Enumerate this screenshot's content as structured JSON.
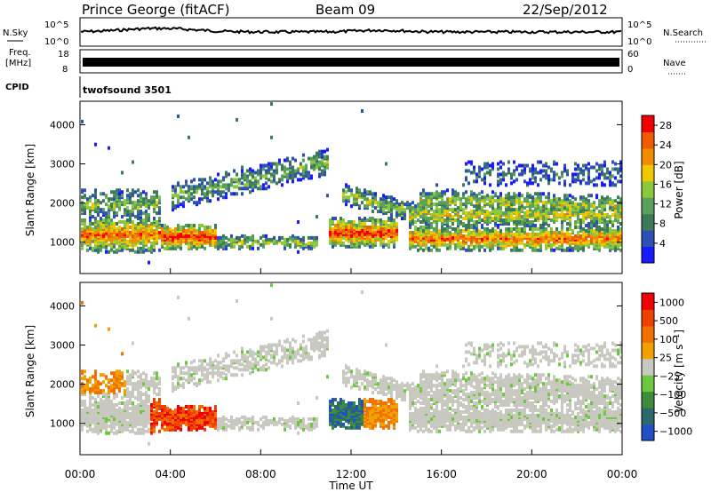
{
  "header": {
    "station": "Prince George (fitACF)",
    "beam": "Beam 09",
    "date": "22/Sep/2012"
  },
  "noise_panel": {
    "left_label": "N.Sky",
    "right_label": "N.Search",
    "left_ticks": [
      "10^5",
      "10^0"
    ],
    "right_ticks": [
      "10^5",
      "10^0"
    ]
  },
  "freq_panel": {
    "left_label_line1": "Freq.",
    "left_label_line2": "[MHz]",
    "right_label": "Nave",
    "left_ticks": [
      "18",
      "8"
    ],
    "right_ticks": [
      "60",
      "0"
    ]
  },
  "cpid_panel": {
    "label": "CPID",
    "value": "twofsound 3501"
  },
  "colors": {
    "power": [
      "#1a1aff",
      "#2e4fb4",
      "#3d7a5a",
      "#5aa05a",
      "#8cc83c",
      "#f0c800",
      "#f08c00",
      "#f05a00",
      "#f00000"
    ],
    "velocity": [
      "#2050c8",
      "#2a6a6a",
      "#3c8c3c",
      "#6cc83c",
      "#c8c8c0",
      "#f0a000",
      "#f07000",
      "#f04000",
      "#f00000"
    ]
  },
  "chart_data": [
    {
      "type": "heatmap",
      "title": "Power",
      "ylabel": "Slant Range [km]",
      "xlabel": "",
      "y_ticks": [
        1000,
        2000,
        3000,
        4000
      ],
      "ylim": [
        200,
        4600
      ],
      "colorbar_label": "Power [dB]",
      "colorbar_ticks": [
        "4",
        "8",
        "12",
        "16",
        "20",
        "24",
        "28"
      ],
      "colorbar_range": [
        0,
        30
      ],
      "x_range_hours": [
        0,
        24
      ]
    },
    {
      "type": "heatmap",
      "title": "Velocity",
      "ylabel": "Slant Range [km]",
      "xlabel": "Time UT",
      "y_ticks": [
        1000,
        2000,
        3000,
        4000
      ],
      "ylim": [
        200,
        4600
      ],
      "colorbar_label": "Velocity [m s^-1]",
      "colorbar_ticks": [
        "1000",
        "500",
        "100",
        "25",
        "−25",
        "−100",
        "−500",
        "−1000"
      ],
      "x_tick_labels": [
        "00:00",
        "04:00",
        "08:00",
        "12:00",
        "16:00",
        "20:00",
        "00:00"
      ],
      "x_range_hours": [
        0,
        24
      ]
    }
  ]
}
